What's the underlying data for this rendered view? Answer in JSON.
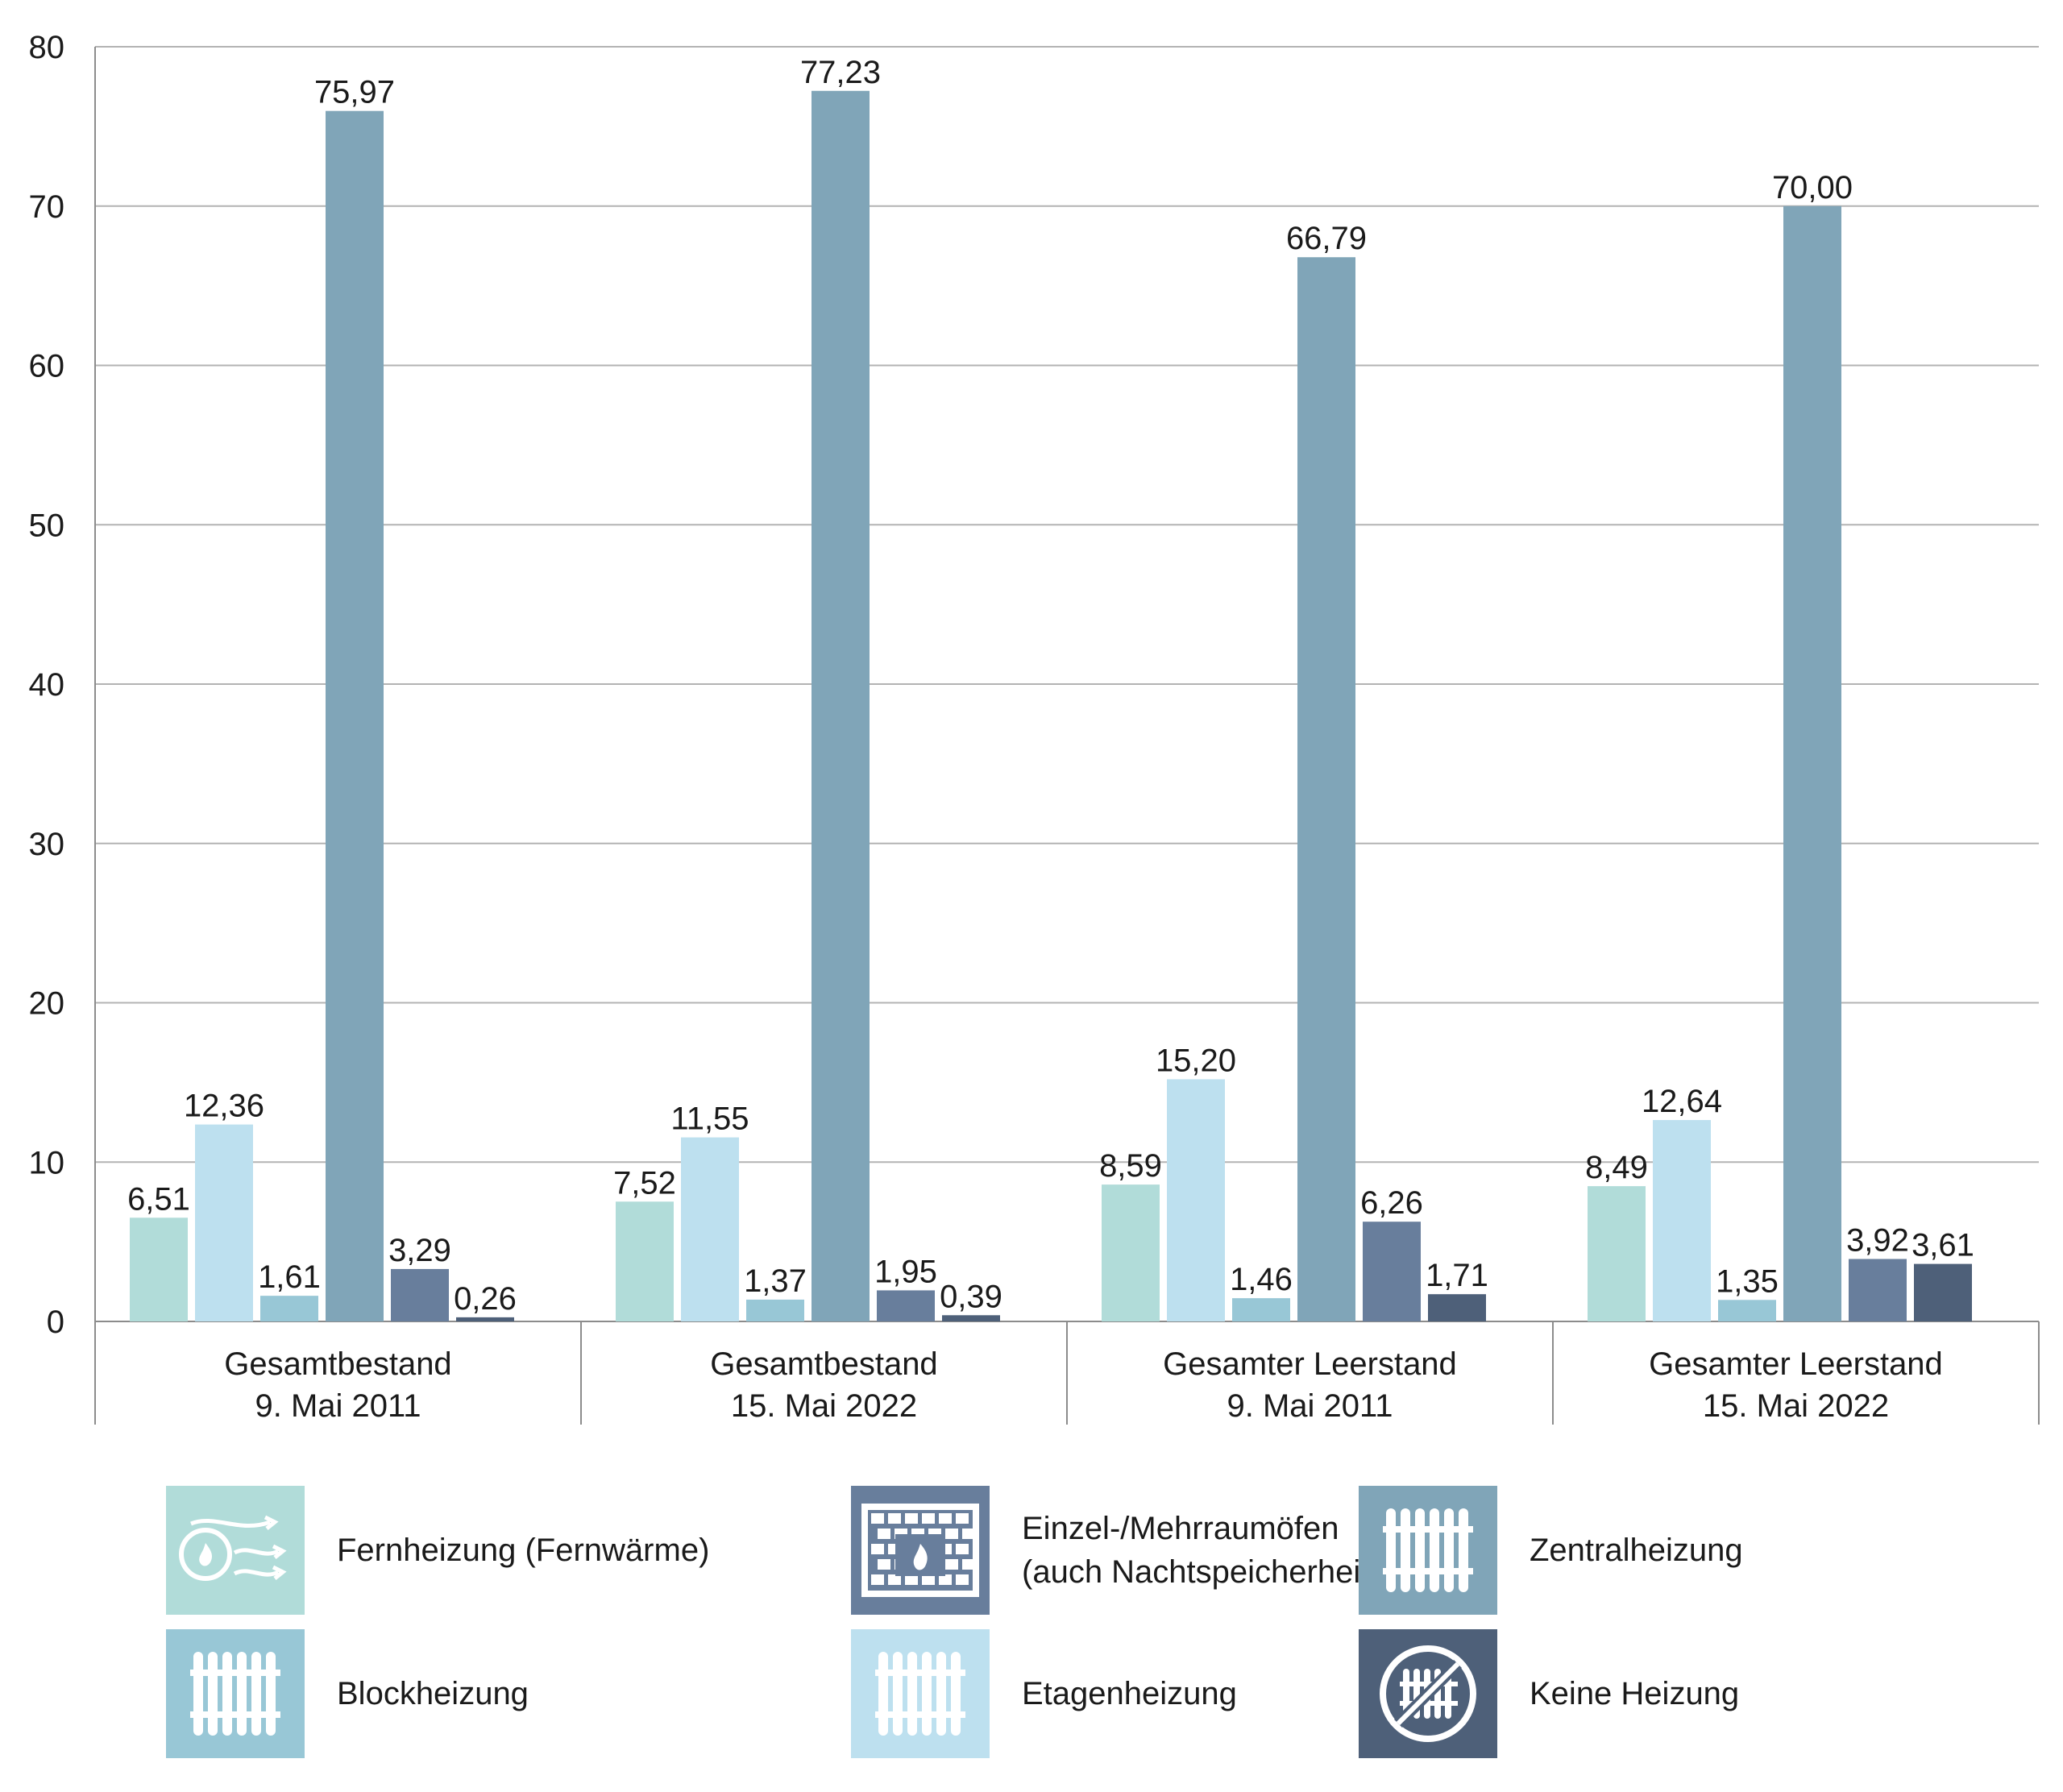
{
  "chart_data": {
    "type": "bar",
    "title": "",
    "xlabel": "",
    "ylabel": "",
    "ylim": [
      0,
      80
    ],
    "yticks": [
      "0",
      "10",
      "20",
      "30",
      "40",
      "50",
      "60",
      "70",
      "80"
    ],
    "grid": true,
    "legend_position": "bottom",
    "categories": [
      "Gesamtbestand\n9. Mai 2011",
      "Gesamtbestand\n15. Mai 2022",
      "Gesamter Leerstand\n9. Mai 2011",
      "Gesamter Leerstand\n15. Mai 2022"
    ],
    "series": [
      {
        "name": "Fernheizung (Fernwärme)",
        "color": "#b1dcd9",
        "icon": "district-heating-icon",
        "values": [
          6.51,
          7.52,
          8.59,
          8.49
        ],
        "labels": [
          "6,51",
          "7,52",
          "8,59",
          "8,49"
        ]
      },
      {
        "name": "Etagenheizung",
        "color": "#bde0ef",
        "icon": "radiator-icon",
        "values": [
          12.36,
          11.55,
          15.2,
          12.64
        ],
        "labels": [
          "12,36",
          "11,55",
          "15,20",
          "12,64"
        ]
      },
      {
        "name": "Blockheizung",
        "color": "#98c7d6",
        "icon": "radiator-icon",
        "values": [
          1.61,
          1.37,
          1.46,
          1.35
        ],
        "labels": [
          "1,61",
          "1,37",
          "1,46",
          "1,35"
        ]
      },
      {
        "name": "Zentralheizung",
        "color": "#80a5b8",
        "icon": "radiator-icon",
        "values": [
          75.97,
          77.23,
          66.79,
          70.0
        ],
        "labels": [
          "75,97",
          "77,23",
          "66,79",
          "70,00"
        ]
      },
      {
        "name": "Einzel-/Mehrraumöfen\n(auch Nachtspeicherheizung)",
        "color": "#687e9c",
        "icon": "stove-icon",
        "values": [
          3.29,
          1.95,
          6.26,
          3.92
        ],
        "labels": [
          "3,29",
          "1,95",
          "6,26",
          "3,92"
        ]
      },
      {
        "name": "Keine Heizung",
        "color": "#4e6079",
        "icon": "no-heating-icon",
        "values": [
          0.26,
          0.39,
          1.71,
          3.61
        ],
        "labels": [
          "0,26",
          "0,39",
          "1,71",
          "3,61"
        ]
      }
    ]
  },
  "legend_order": [
    0,
    2,
    4,
    1,
    3,
    5
  ]
}
